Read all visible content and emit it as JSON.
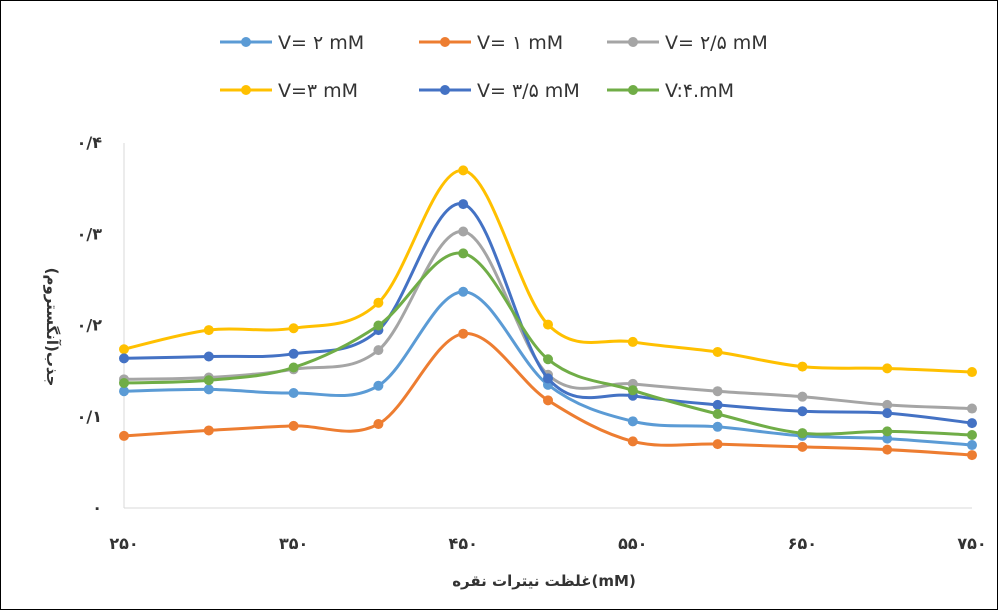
{
  "chart_data": {
    "type": "line",
    "xlabel": "غلظت نیترات نقره(mM)",
    "ylabel": "جذب(آنگستروم)",
    "x": [
      250,
      300,
      350,
      400,
      450,
      500,
      550,
      600,
      650,
      700,
      750
    ],
    "xlim": [
      250,
      750
    ],
    "ylim": [
      0,
      0.4
    ],
    "x_ticks": [
      250,
      350,
      450,
      550,
      650,
      750
    ],
    "x_tick_labels": [
      "۲۵۰",
      "۳۵۰",
      "۴۵۰",
      "۵۵۰",
      "۶۵۰",
      "۷۵۰"
    ],
    "y_ticks": [
      0,
      0.1,
      0.2,
      0.3,
      0.4
    ],
    "y_tick_labels": [
      "۰",
      "۰/۱",
      "۰/۲",
      "۰/۳",
      "۰/۴"
    ],
    "grid": false,
    "legend_position": "top",
    "series": [
      {
        "name": "V= ۲  mM",
        "color": "#5B9BD5",
        "values": [
          0.128,
          0.13,
          0.126,
          0.134,
          0.237,
          0.135,
          0.095,
          0.089,
          0.079,
          0.076,
          0.069
        ]
      },
      {
        "name": "V= ۱  mM",
        "color": "#ED7D31",
        "values": [
          0.079,
          0.085,
          0.09,
          0.092,
          0.191,
          0.118,
          0.073,
          0.07,
          0.067,
          0.064,
          0.058
        ]
      },
      {
        "name": "V= ۲/۵ mM",
        "color": "#A5A5A5",
        "values": [
          0.141,
          0.143,
          0.152,
          0.173,
          0.303,
          0.146,
          0.136,
          0.128,
          0.122,
          0.113,
          0.109
        ]
      },
      {
        "name": "V=۳  mM",
        "color": "#FFC000",
        "values": [
          0.174,
          0.195,
          0.197,
          0.225,
          0.37,
          0.201,
          0.182,
          0.171,
          0.155,
          0.153,
          0.149
        ]
      },
      {
        "name": "V= ۳/۵  mM",
        "color": "#4472C4",
        "values": [
          0.164,
          0.166,
          0.169,
          0.195,
          0.333,
          0.142,
          0.123,
          0.113,
          0.106,
          0.104,
          0.093
        ]
      },
      {
        "name": "V:۴.mM",
        "color": "#70AD47",
        "values": [
          0.137,
          0.14,
          0.154,
          0.2,
          0.279,
          0.163,
          0.129,
          0.103,
          0.082,
          0.084,
          0.08
        ]
      }
    ]
  }
}
